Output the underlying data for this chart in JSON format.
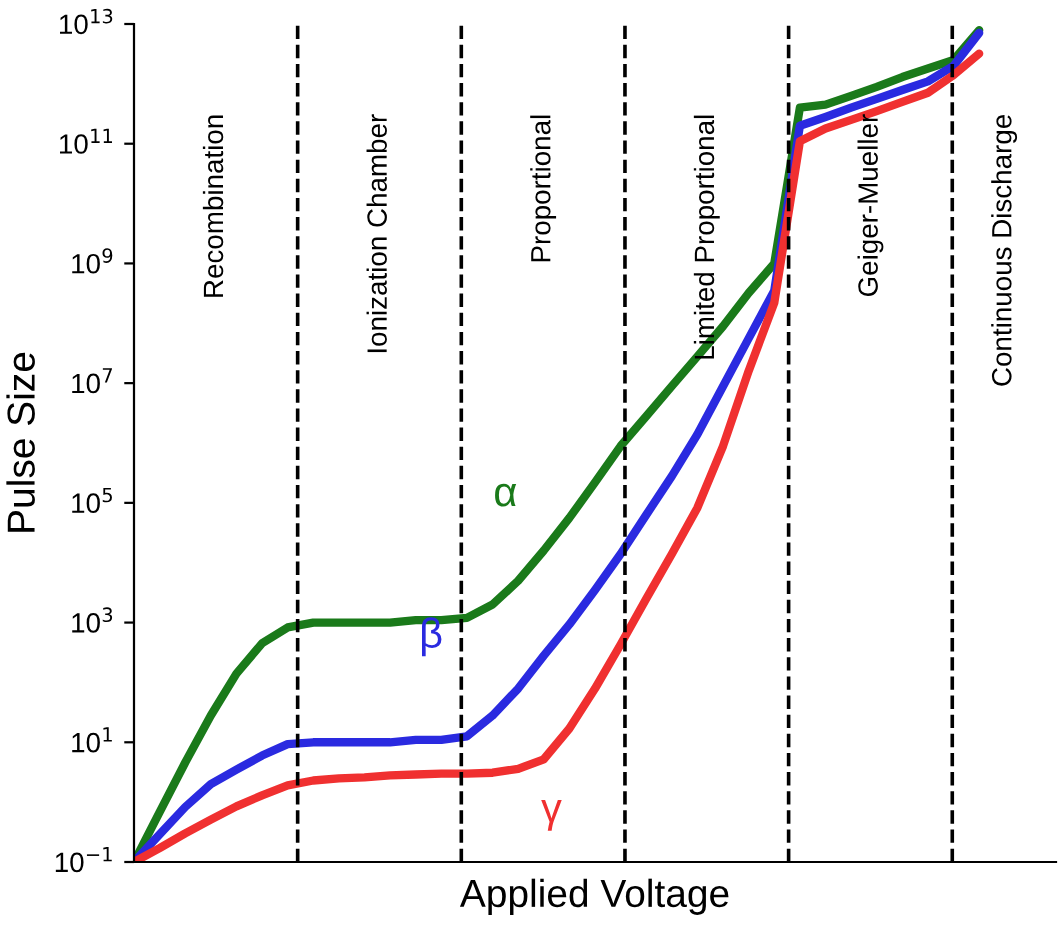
{
  "chart_data": {
    "type": "line",
    "xlabel": "Applied Voltage",
    "ylabel": "Pulse Size",
    "log": "y",
    "grid": false,
    "tick_labels": "y",
    "marker": "none",
    "line_style": "solid",
    "categories": [
      null,
      null,
      null,
      null,
      null,
      null,
      null,
      null,
      null,
      null,
      null,
      null,
      null,
      null,
      null,
      null,
      null,
      null,
      null,
      null,
      null,
      null,
      null,
      null,
      null,
      null,
      null,
      null,
      null,
      null,
      null,
      null,
      null,
      null,
      null,
      null,
      null
    ],
    "ylim": [
      0.1,
      10000000000000.0
    ],
    "yticks": [
      {
        "value": 0.1,
        "label": "10$^{−1}$"
      },
      {
        "value": 10,
        "label": "10$^{1}$"
      },
      {
        "value": 1000,
        "label": "10$^{3}$"
      },
      {
        "value": 100000.0,
        "label": "10$^{5}$"
      },
      {
        "value": 10000000.0,
        "label": "10$^{7}$"
      },
      {
        "value": 1000000000.0,
        "label": "10$^{9}$"
      },
      {
        "value": 100000000000.0,
        "label": "10$^{11}$"
      },
      {
        "value": 10000000000000.0,
        "label": "10$^{13}$"
      }
    ],
    "series": [
      {
        "name": "α",
        "color": "#1a7a1a",
        "values": [
          0.1,
          0.68,
          4.6,
          28,
          140,
          450,
          830,
          1000,
          1000,
          1000,
          1000,
          1100,
          1100,
          1200,
          2000,
          5000,
          16000.0,
          56000.0,
          220000.0,
          890000.0,
          2800000.0,
          8900000.0,
          28000000.0,
          89000000.0,
          320000000.0,
          1000000000.0,
          400000000000.0,
          450000000000.0,
          630000000000.0,
          890000000000.0,
          1300000000000.0,
          1800000000000.0,
          2500000000000.0,
          7900000000000.0,
          null,
          null,
          null
        ]
      },
      {
        "name": "β",
        "color": "#2a2ae0",
        "values": [
          0.1,
          0.29,
          0.83,
          2,
          3.5,
          6,
          9.3,
          10,
          10,
          10,
          10,
          11,
          11,
          12.6,
          28,
          79,
          280,
          930,
          3500,
          14000.0,
          63000.0,
          280000.0,
          1400000.0,
          8900000.0,
          56000000.0,
          350000000.0,
          200000000000.0,
          280000000000.0,
          400000000000.0,
          560000000000.0,
          790000000000.0,
          1100000000000.0,
          2000000000000.0,
          7100000000000.0,
          null,
          null,
          null
        ]
      },
      {
        "name": "γ",
        "color": "#f03030",
        "values": [
          0.1,
          0.17,
          0.3,
          0.51,
          0.85,
          1.3,
          1.9,
          2.3,
          2.5,
          2.6,
          2.8,
          2.9,
          3,
          3,
          3.1,
          3.6,
          5.2,
          17,
          79,
          430,
          2500,
          14000.0,
          83000.0,
          890000.0,
          16000000.0,
          220000000.0,
          110000000000.0,
          180000000000.0,
          250000000000.0,
          350000000000.0,
          500000000000.0,
          710000000000.0,
          1400000000000.0,
          3200000000000.0,
          null,
          null,
          null
        ]
      }
    ],
    "annotations": [
      "Recombination",
      "Ionization Chamber",
      "Proportional",
      "Limited Proportional",
      "Geiger-Mueller",
      "Continuous Discharge"
    ]
  }
}
